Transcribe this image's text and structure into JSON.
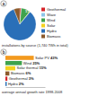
{
  "chart_data": [
    {
      "type": "pie",
      "title": "installations by source (1,740 TWh in total)",
      "annotations": [
        "a",
        "17%"
      ],
      "categories": [
        "Geothermal",
        "Wave",
        "Wind",
        "Solar",
        "Hydro",
        "Biomass"
      ],
      "values": [
        1.5,
        0.1,
        9,
        0.4,
        83,
        6
      ],
      "colors": [
        "#d7262b",
        "#8fc6e8",
        "#3fa34d",
        "#f4d21f",
        "#2a6fb8",
        "#8c5a2b"
      ],
      "legend": "right",
      "data_labels": false
    },
    {
      "type": "bar",
      "orientation": "horizontal",
      "title": "average annual growth rate 1998-2008",
      "annotations": [
        "b"
      ],
      "categories": [
        "Solar PV",
        "Wind",
        "Solar thermal",
        "Biomass",
        "Geothermal",
        "Hydro"
      ],
      "values": [
        43,
        25,
        15,
        6,
        3,
        2
      ],
      "value_labels": [
        "43%",
        "25%",
        "15%",
        "6%",
        "3%",
        "2%"
      ],
      "colors": [
        "#f39a1e",
        "#3fa34d",
        "#f4d21f",
        "#8c5a2b",
        "#d7262b",
        "#2a6fb8"
      ],
      "xlim": [
        0,
        60
      ],
      "xticks": [],
      "tick_labels": false,
      "data_labels": true
    }
  ]
}
